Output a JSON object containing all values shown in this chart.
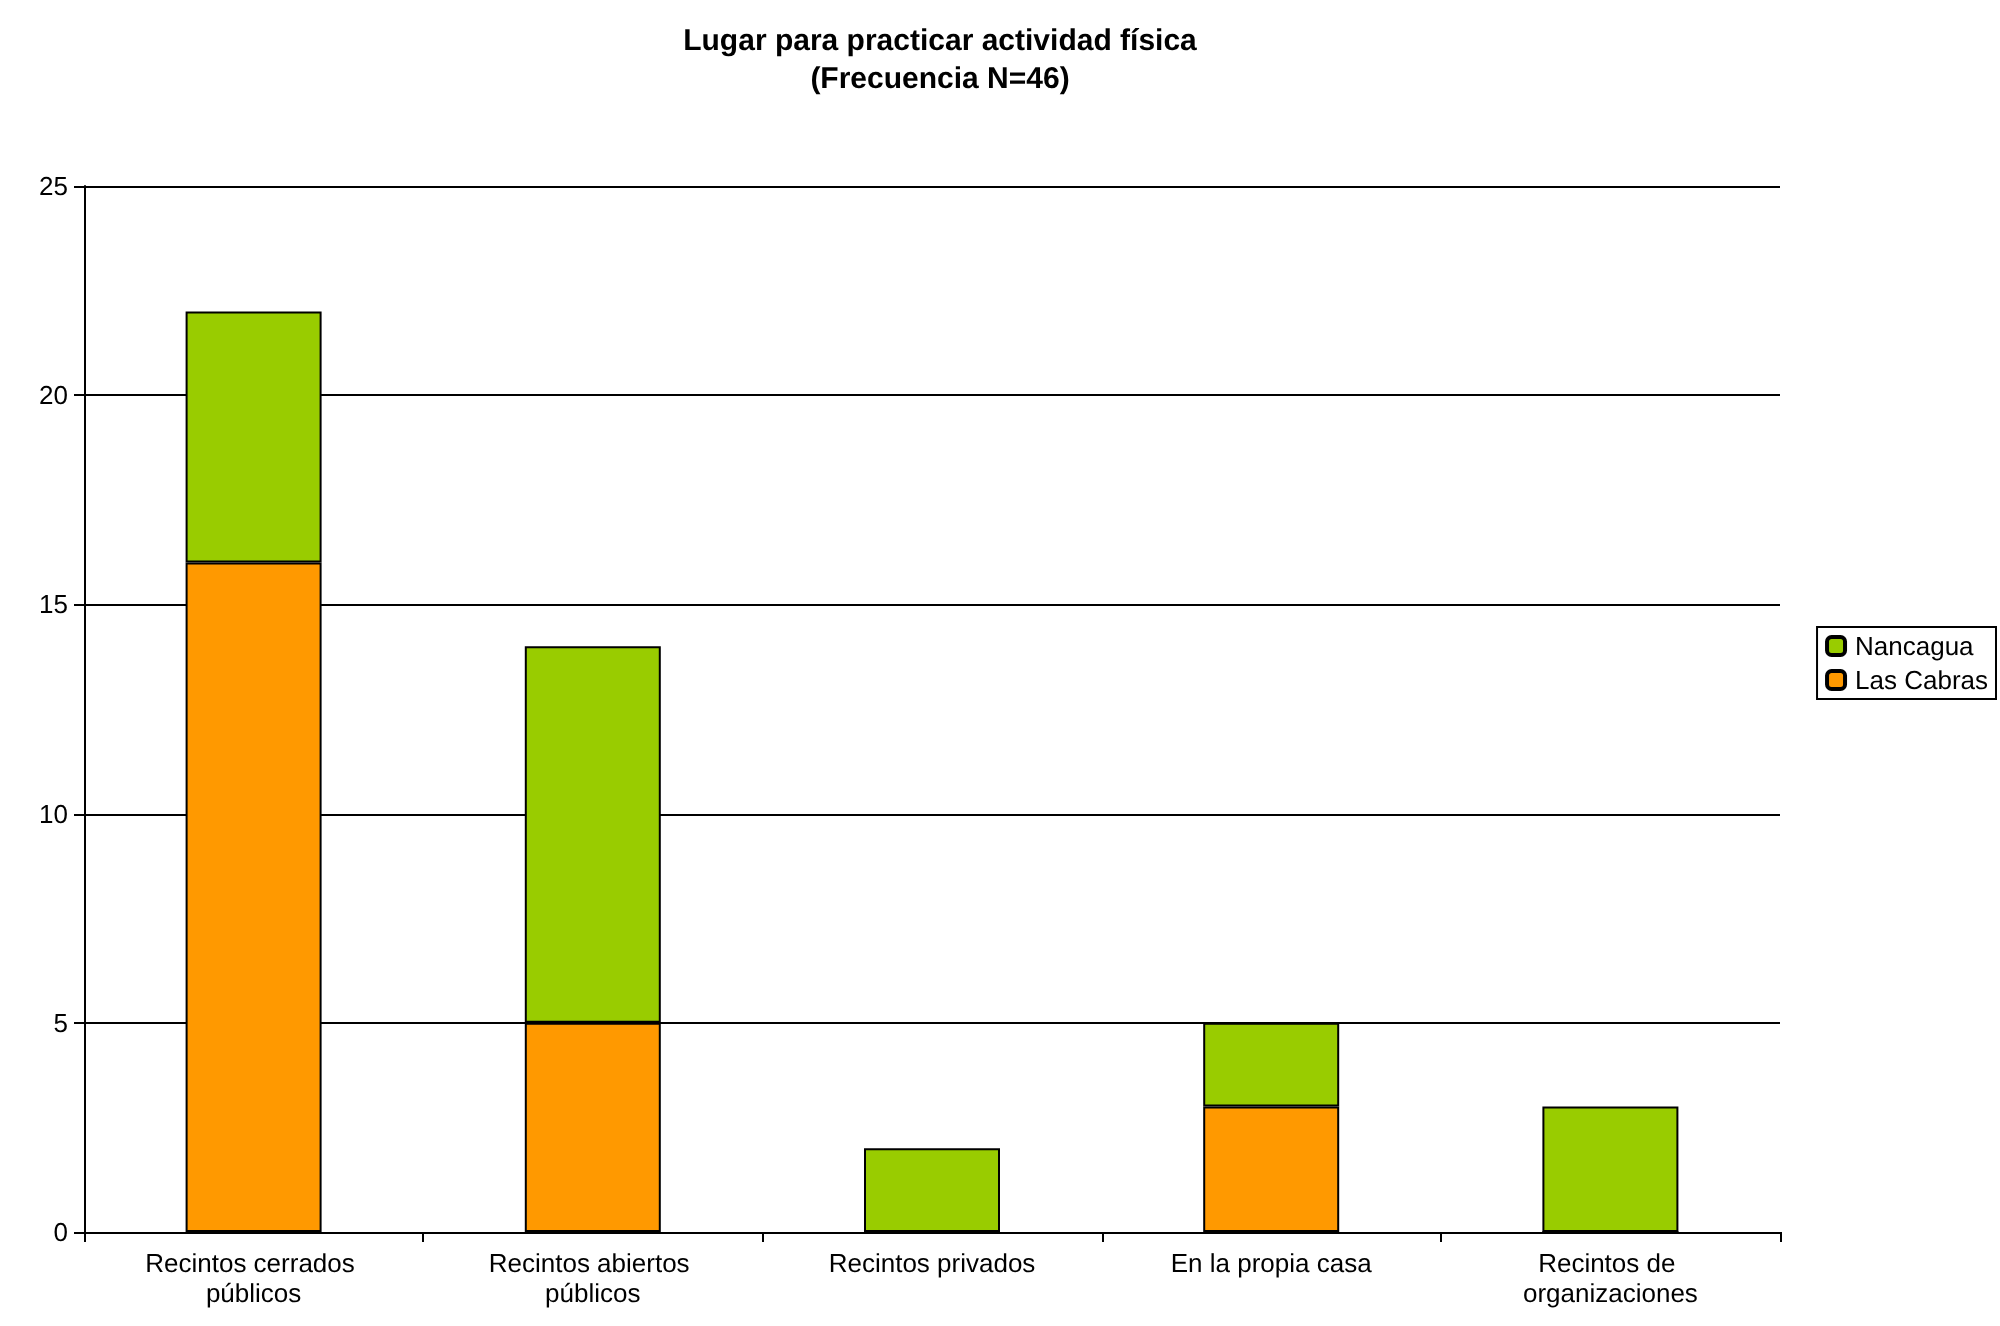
{
  "chart_data": {
    "type": "bar",
    "title": "Lugar para practicar actividad física",
    "subtitle": "(Frecuencia N=46)",
    "categories": [
      "Recintos cerrados públicos",
      "Recintos abiertos públicos",
      "Recintos privados",
      "En la propia casa",
      "Recintos de organizaciones"
    ],
    "series": [
      {
        "name": "Las Cabras",
        "color": "#ff9900",
        "values": [
          16,
          5,
          0,
          3,
          0
        ]
      },
      {
        "name": "Nancagua",
        "color": "#99cc00",
        "values": [
          6,
          9,
          2,
          2,
          3
        ]
      }
    ],
    "stacked": true,
    "ylim": [
      0,
      25
    ],
    "yticks": [
      0,
      5,
      10,
      15,
      20,
      25
    ],
    "grid": "y",
    "legend": "right"
  }
}
